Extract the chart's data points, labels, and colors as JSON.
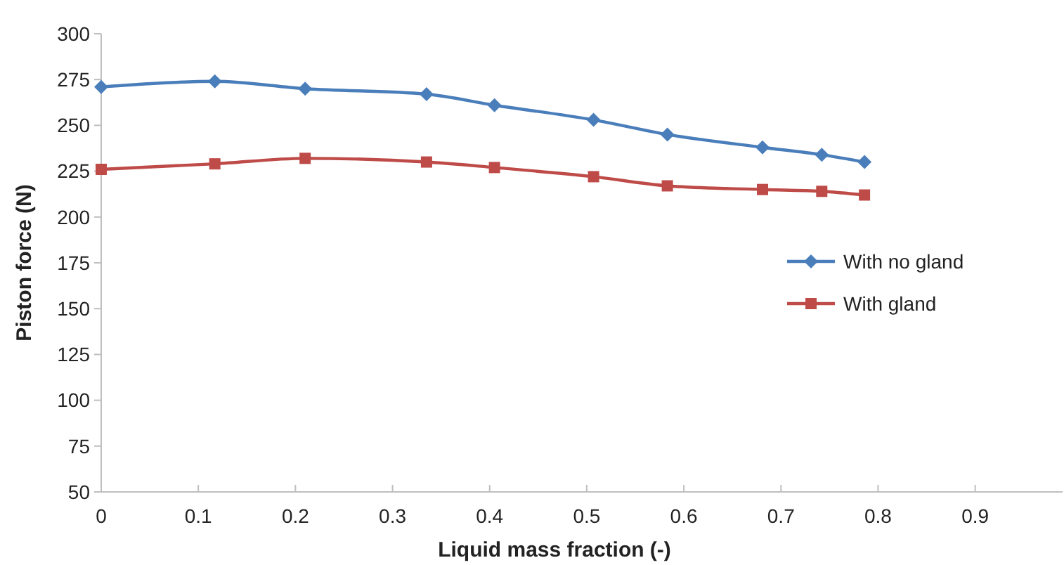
{
  "chart_data": {
    "type": "line",
    "xlabel": "Liquid mass fraction (-)",
    "ylabel": "Piston force (N)",
    "xlim": [
      0,
      0.99
    ],
    "xticks": [
      0,
      0.1,
      0.2,
      0.3,
      0.4,
      0.5,
      0.6,
      0.7,
      0.8,
      0.9
    ],
    "ylim": [
      50,
      300
    ],
    "yticks": [
      50,
      75,
      100,
      125,
      150,
      175,
      200,
      225,
      250,
      275,
      300
    ],
    "grid": false,
    "legend": "right",
    "series": [
      {
        "name": "With no gland",
        "color": "#4a7ebb",
        "marker": "diamond",
        "x": [
          0,
          0.117,
          0.21,
          0.335,
          0.405,
          0.507,
          0.583,
          0.681,
          0.742,
          0.786
        ],
        "values": [
          271,
          274,
          270,
          267,
          261,
          253,
          245,
          238,
          234,
          230
        ]
      },
      {
        "name": "With gland",
        "color": "#be4b48",
        "marker": "square",
        "x": [
          0,
          0.117,
          0.21,
          0.335,
          0.405,
          0.507,
          0.583,
          0.681,
          0.742,
          0.786
        ],
        "values": [
          226,
          229,
          232,
          230,
          227,
          222,
          217,
          215,
          214,
          212
        ]
      }
    ]
  }
}
